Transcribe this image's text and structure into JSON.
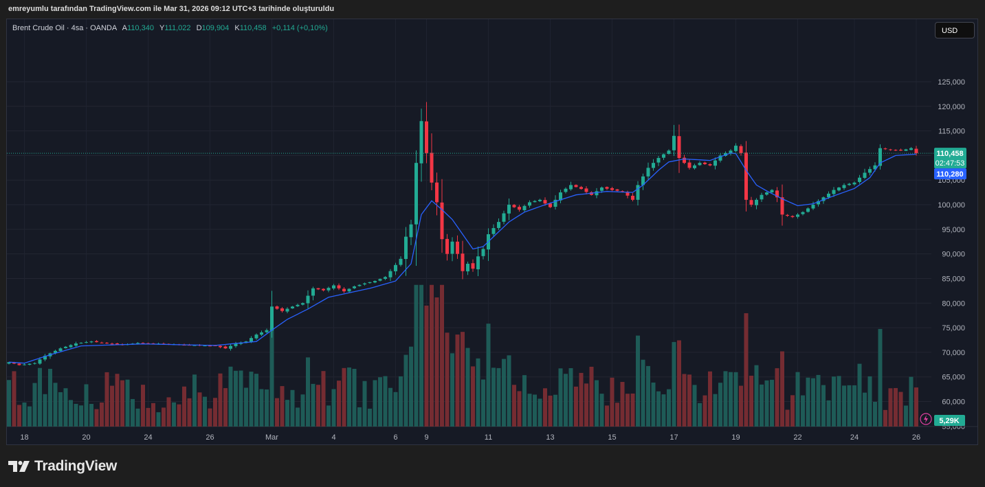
{
  "snapshot_caption": "emreyumlu tarafından TradingView.com ile Mar 31, 2026 09:12 UTC+3 tarihinde oluşturuldu",
  "legend": {
    "symbol": "Brent Crude Oil · 4sa · OANDA",
    "open_key": "A",
    "open": "110,340",
    "high_key": "Y",
    "high": "111,022",
    "low_key": "D",
    "low": "109,904",
    "close_key": "K",
    "close": "110,458",
    "change": "+0,114 (+0,10%)"
  },
  "currency_button": "USD",
  "price_tag": "110,458",
  "countdown": "02:47:53",
  "ma_tag": "110,280",
  "volume_tag": "5,29K",
  "brand": "TradingView",
  "colors": {
    "up": "#22ab94",
    "down": "#f23645",
    "ma": "#2962ff",
    "background": "#161a25"
  },
  "chart_data": {
    "type": "candlestick",
    "symbol": "Brent Crude Oil",
    "interval": "4sa",
    "exchange": "OANDA",
    "currency": "USD",
    "y_ticks": [
      125000,
      120000,
      115000,
      110000,
      105000,
      100000,
      95000,
      90000,
      85000,
      80000,
      75000,
      70000,
      65000,
      60000,
      55000
    ],
    "y_tick_labels": [
      "125,000",
      "120,000",
      "115,000",
      "110,000",
      "105,000",
      "100,000",
      "95,000",
      "90,000",
      "85,000",
      "80,000",
      "75,000",
      "70,000",
      "65,000",
      "60,000",
      "55,000"
    ],
    "x_labels": [
      {
        "label": "18",
        "bar": 3
      },
      {
        "label": "20",
        "bar": 15
      },
      {
        "label": "24",
        "bar": 27
      },
      {
        "label": "26",
        "bar": 39
      },
      {
        "label": "Mar",
        "bar": 51
      },
      {
        "label": "4",
        "bar": 63
      },
      {
        "label": "6",
        "bar": 75
      },
      {
        "label": "9",
        "bar": 81
      },
      {
        "label": "11",
        "bar": 93
      },
      {
        "label": "13",
        "bar": 105
      },
      {
        "label": "15",
        "bar": 117
      },
      {
        "label": "17",
        "bar": 129
      },
      {
        "label": "19",
        "bar": 141
      },
      {
        "label": "22",
        "bar": 153
      },
      {
        "label": "24",
        "bar": 164
      },
      {
        "label": "26",
        "bar": 176
      }
    ],
    "close_anchors": [
      [
        0,
        68000
      ],
      [
        2,
        67400
      ],
      [
        5,
        67800
      ],
      [
        7,
        69300
      ],
      [
        10,
        70800
      ],
      [
        13,
        71800
      ],
      [
        16,
        72200
      ],
      [
        19,
        71800
      ],
      [
        22,
        71500
      ],
      [
        25,
        71900
      ],
      [
        28,
        71800
      ],
      [
        31,
        71700
      ],
      [
        34,
        71500
      ],
      [
        37,
        71400
      ],
      [
        40,
        71300
      ],
      [
        42,
        70800
      ],
      [
        44,
        71800
      ],
      [
        46,
        72200
      ],
      [
        48,
        73600
      ],
      [
        50,
        74500
      ],
      [
        51,
        79300
      ],
      [
        53,
        78400
      ],
      [
        55,
        79300
      ],
      [
        57,
        80000
      ],
      [
        59,
        83000
      ],
      [
        61,
        82600
      ],
      [
        63,
        83600
      ],
      [
        65,
        82400
      ],
      [
        67,
        83400
      ],
      [
        69,
        84000
      ],
      [
        71,
        84500
      ],
      [
        73,
        85300
      ],
      [
        74,
        86500
      ],
      [
        76,
        89000
      ],
      [
        77,
        93500
      ],
      [
        78,
        96000
      ],
      [
        79,
        108500
      ],
      [
        80,
        117000
      ],
      [
        81,
        110500
      ],
      [
        82,
        104500
      ],
      [
        83,
        100500
      ],
      [
        84,
        93000
      ],
      [
        85,
        90000
      ],
      [
        86,
        92500
      ],
      [
        87,
        90000
      ],
      [
        88,
        86500
      ],
      [
        89,
        88000
      ],
      [
        90,
        87000
      ],
      [
        91,
        89500
      ],
      [
        92,
        91000
      ],
      [
        93,
        94000
      ],
      [
        95,
        96500
      ],
      [
        97,
        100000
      ],
      [
        99,
        99000
      ],
      [
        101,
        100500
      ],
      [
        103,
        101000
      ],
      [
        105,
        99500
      ],
      [
        107,
        102500
      ],
      [
        109,
        104000
      ],
      [
        111,
        103200
      ],
      [
        113,
        102000
      ],
      [
        115,
        103500
      ],
      [
        117,
        103000
      ],
      [
        119,
        102700
      ],
      [
        121,
        101000
      ],
      [
        122,
        104000
      ],
      [
        124,
        107500
      ],
      [
        126,
        109500
      ],
      [
        128,
        111000
      ],
      [
        129,
        114000
      ],
      [
        130,
        109500
      ],
      [
        132,
        107500
      ],
      [
        134,
        108500
      ],
      [
        136,
        108000
      ],
      [
        138,
        110000
      ],
      [
        140,
        111000
      ],
      [
        141,
        112000
      ],
      [
        142,
        110500
      ],
      [
        143,
        101000
      ],
      [
        144,
        100000
      ],
      [
        146,
        102000
      ],
      [
        148,
        103000
      ],
      [
        149,
        101500
      ],
      [
        150,
        98000
      ],
      [
        152,
        97500
      ],
      [
        154,
        98500
      ],
      [
        156,
        100000
      ],
      [
        158,
        101500
      ],
      [
        160,
        103000
      ],
      [
        162,
        104000
      ],
      [
        164,
        104500
      ],
      [
        166,
        106500
      ],
      [
        168,
        108000
      ],
      [
        169,
        111500
      ],
      [
        171,
        111200
      ],
      [
        173,
        111000
      ],
      [
        175,
        111500
      ],
      [
        176,
        110458
      ]
    ],
    "ma_anchors": [
      [
        0,
        68000
      ],
      [
        3,
        67800
      ],
      [
        8,
        69500
      ],
      [
        14,
        71300
      ],
      [
        26,
        71700
      ],
      [
        40,
        71400
      ],
      [
        48,
        72200
      ],
      [
        51,
        74500
      ],
      [
        54,
        76700
      ],
      [
        58,
        78800
      ],
      [
        62,
        81200
      ],
      [
        70,
        83000
      ],
      [
        75,
        84500
      ],
      [
        78,
        88000
      ],
      [
        80,
        98000
      ],
      [
        82,
        100800
      ],
      [
        84,
        99000
      ],
      [
        86,
        97000
      ],
      [
        88,
        94000
      ],
      [
        90,
        91000
      ],
      [
        92,
        91500
      ],
      [
        94,
        93500
      ],
      [
        97,
        96500
      ],
      [
        100,
        98500
      ],
      [
        104,
        100000
      ],
      [
        110,
        102000
      ],
      [
        116,
        102700
      ],
      [
        121,
        102500
      ],
      [
        123,
        104000
      ],
      [
        126,
        107000
      ],
      [
        128,
        108700
      ],
      [
        131,
        109300
      ],
      [
        136,
        109000
      ],
      [
        140,
        110500
      ],
      [
        141,
        110400
      ],
      [
        143,
        107000
      ],
      [
        145,
        104000
      ],
      [
        147,
        102800
      ],
      [
        150,
        101200
      ],
      [
        153,
        99800
      ],
      [
        156,
        100200
      ],
      [
        160,
        101800
      ],
      [
        164,
        103300
      ],
      [
        167,
        105500
      ],
      [
        169,
        108500
      ],
      [
        172,
        110000
      ],
      [
        176,
        110280
      ]
    ],
    "volume_scale_max": 100000,
    "volume_last": 5290
  }
}
